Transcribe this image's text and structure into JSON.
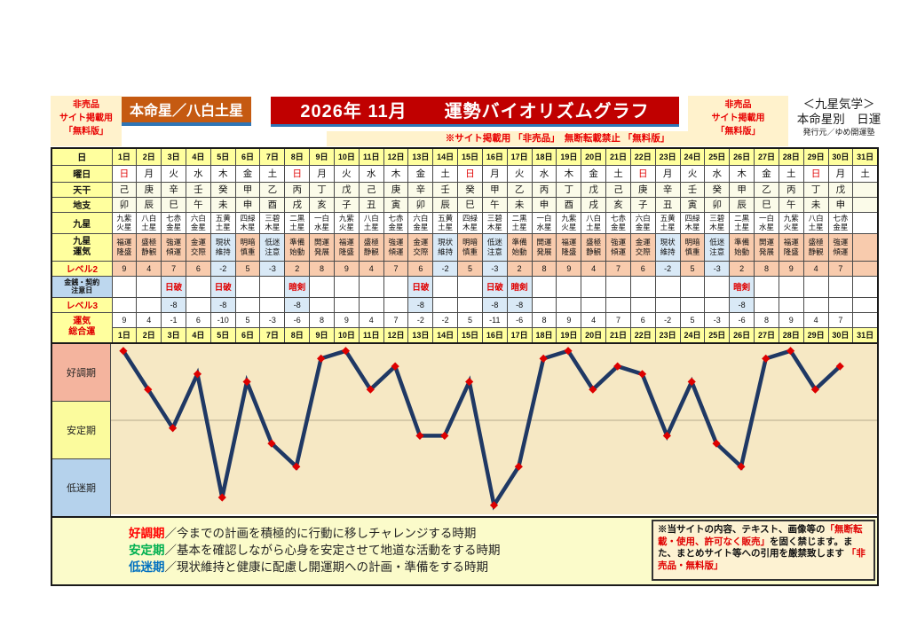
{
  "header": {
    "left_notice": {
      "lines": [
        "非売品",
        "サイト掲載用",
        "「無料版」"
      ]
    },
    "honmeisei": "本命星／八白土星",
    "title": "2026年 11月　　運勢バイオリズムグラフ",
    "strip": "※サイト掲載用 「非売品」　無断転載禁止 「無料版」",
    "right_notice": {
      "lines": [
        "非売品",
        "サイト掲載用",
        "「無料版」"
      ]
    },
    "publisher": {
      "lines": [
        "＜九星気学＞",
        "本命星別　日運",
        "発行元／ゆめ開運塾"
      ]
    }
  },
  "table": {
    "row_labels": {
      "day": "日",
      "youbi": "曜日",
      "tenkan": "天干",
      "chishi": "地支",
      "kyusei": "九星",
      "unki": [
        "九星",
        "運気"
      ],
      "level2": "レベル2",
      "caution": [
        "金銭・契約",
        "注意日"
      ],
      "level3": "レベル3",
      "total": [
        "運気",
        "総合運"
      ]
    },
    "days": [
      "1日",
      "2日",
      "3日",
      "4日",
      "5日",
      "6日",
      "7日",
      "8日",
      "9日",
      "10日",
      "11日",
      "12日",
      "13日",
      "14日",
      "15日",
      "16日",
      "17日",
      "18日",
      "19日",
      "20日",
      "21日",
      "22日",
      "23日",
      "24日",
      "25日",
      "26日",
      "27日",
      "28日",
      "29日",
      "30日",
      "31日"
    ],
    "sunday": "日",
    "youbi": [
      "日",
      "月",
      "火",
      "水",
      "木",
      "金",
      "土",
      "日",
      "月",
      "火",
      "水",
      "木",
      "金",
      "土",
      "日",
      "月",
      "火",
      "水",
      "木",
      "金",
      "土",
      "日",
      "月",
      "火",
      "水",
      "木",
      "金",
      "土",
      "日",
      "月",
      "土"
    ],
    "tenkan": [
      "己",
      "庚",
      "辛",
      "壬",
      "癸",
      "甲",
      "乙",
      "丙",
      "丁",
      "戊",
      "己",
      "庚",
      "辛",
      "壬",
      "癸",
      "甲",
      "乙",
      "丙",
      "丁",
      "戊",
      "己",
      "庚",
      "辛",
      "壬",
      "癸",
      "甲",
      "乙",
      "丙",
      "丁",
      "戊"
    ],
    "chishi": [
      "卯",
      "辰",
      "巳",
      "午",
      "未",
      "申",
      "酉",
      "戌",
      "亥",
      "子",
      "丑",
      "寅",
      "卯",
      "辰",
      "巳",
      "午",
      "未",
      "申",
      "酉",
      "戌",
      "亥",
      "子",
      "丑",
      "寅",
      "卯",
      "辰",
      "巳",
      "午",
      "未",
      "申"
    ],
    "kyusei": [
      [
        "九紫",
        "火星"
      ],
      [
        "八白",
        "土星"
      ],
      [
        "七赤",
        "金星"
      ],
      [
        "六白",
        "金星"
      ],
      [
        "五黄",
        "土星"
      ],
      [
        "四緑",
        "木星"
      ],
      [
        "三碧",
        "木星"
      ],
      [
        "二黒",
        "土星"
      ],
      [
        "一白",
        "水星"
      ],
      [
        "九紫",
        "火星"
      ],
      [
        "八白",
        "土星"
      ],
      [
        "七赤",
        "金星"
      ],
      [
        "六白",
        "金星"
      ],
      [
        "五黄",
        "土星"
      ],
      [
        "四緑",
        "木星"
      ],
      [
        "三碧",
        "木星"
      ],
      [
        "二黒",
        "土星"
      ],
      [
        "一白",
        "水星"
      ],
      [
        "九紫",
        "火星"
      ],
      [
        "八白",
        "土星"
      ],
      [
        "七赤",
        "金星"
      ],
      [
        "六白",
        "金星"
      ],
      [
        "五黄",
        "土星"
      ],
      [
        "四緑",
        "木星"
      ],
      [
        "三碧",
        "木星"
      ],
      [
        "二黒",
        "土星"
      ],
      [
        "一白",
        "水星"
      ],
      [
        "九紫",
        "火星"
      ],
      [
        "八白",
        "土星"
      ],
      [
        "七赤",
        "金星"
      ]
    ],
    "unki": [
      [
        "福運",
        "隆盛"
      ],
      [
        "盛極",
        "静観"
      ],
      [
        "強運",
        "傾運"
      ],
      [
        "金運",
        "交際"
      ],
      [
        "現状",
        "維持"
      ],
      [
        "明暗",
        "慎重"
      ],
      [
        "低迷",
        "注意"
      ],
      [
        "準備",
        "始動"
      ],
      [
        "開運",
        "発展"
      ],
      [
        "福運",
        "隆盛"
      ],
      [
        "盛極",
        "静観"
      ],
      [
        "強運",
        "傾運"
      ],
      [
        "金運",
        "交際"
      ],
      [
        "現状",
        "維持"
      ],
      [
        "明暗",
        "慎重"
      ],
      [
        "低迷",
        "注意"
      ],
      [
        "準備",
        "始動"
      ],
      [
        "開運",
        "発展"
      ],
      [
        "福運",
        "隆盛"
      ],
      [
        "盛極",
        "静観"
      ],
      [
        "強運",
        "傾運"
      ],
      [
        "金運",
        "交際"
      ],
      [
        "現状",
        "維持"
      ],
      [
        "明暗",
        "慎重"
      ],
      [
        "低迷",
        "注意"
      ],
      [
        "準備",
        "始動"
      ],
      [
        "開運",
        "発展"
      ],
      [
        "福運",
        "隆盛"
      ],
      [
        "盛極",
        "静観"
      ],
      [
        "強運",
        "傾運"
      ]
    ],
    "level2": [
      9,
      4,
      7,
      6,
      -2,
      5,
      -3,
      2,
      8,
      9,
      4,
      7,
      6,
      -2,
      5,
      -3,
      2,
      8,
      9,
      4,
      7,
      6,
      -2,
      5,
      -3,
      2,
      8,
      9,
      4,
      7
    ],
    "caution": [
      "",
      "",
      "日破",
      "",
      "日破",
      "",
      "",
      "暗剣",
      "",
      "",
      "",
      "",
      "日破",
      "",
      "",
      "日破",
      "暗剣",
      "",
      "",
      "",
      "",
      "",
      "",
      "",
      "",
      "暗剣",
      "",
      "",
      "",
      "",
      ""
    ],
    "level3": [
      "",
      "",
      "-8",
      "",
      "-8",
      "",
      "",
      "-8",
      "",
      "",
      "",
      "",
      "-8",
      "",
      "",
      "-8",
      "-8",
      "",
      "",
      "",
      "",
      "",
      "",
      "",
      "",
      "-8",
      "",
      "",
      "",
      "",
      ""
    ],
    "total": [
      9,
      4,
      -1,
      6,
      -10,
      5,
      -3,
      -6,
      8,
      9,
      4,
      7,
      -2,
      -2,
      5,
      -11,
      -6,
      8,
      9,
      4,
      7,
      6,
      -2,
      5,
      -3,
      -6,
      8,
      9,
      4,
      7
    ]
  },
  "chart_data": {
    "type": "line",
    "title": "2026年 11月 運勢バイオリズムグラフ（運気総合運）",
    "categories": [
      "1日",
      "2日",
      "3日",
      "4日",
      "5日",
      "6日",
      "7日",
      "8日",
      "9日",
      "10日",
      "11日",
      "12日",
      "13日",
      "14日",
      "15日",
      "16日",
      "17日",
      "18日",
      "19日",
      "20日",
      "21日",
      "22日",
      "23日",
      "24日",
      "25日",
      "26日",
      "27日",
      "28日",
      "29日",
      "30日"
    ],
    "values": [
      9,
      4,
      -1,
      6,
      -10,
      5,
      -3,
      -6,
      8,
      9,
      4,
      7,
      -2,
      -2,
      5,
      -11,
      -6,
      8,
      9,
      4,
      7,
      6,
      -2,
      5,
      -3,
      -6,
      8,
      9,
      4,
      7
    ],
    "ylim": [
      -12,
      10
    ],
    "zero_gridline": true,
    "grid_color": "#b7aa8c",
    "line_color": "#1f3864",
    "marker": "diamond",
    "marker_color": "#dd0000",
    "plot_bg": "#f6e8c4",
    "zones": [
      {
        "label": "好調期",
        "color": "#f4b49e"
      },
      {
        "label": "安定期",
        "color": "#fbfb9d"
      },
      {
        "label": "低迷期",
        "color": "#b5d2ec"
      }
    ]
  },
  "legend": {
    "lines": [
      {
        "label": "好調期",
        "color": "#ff0000",
        "text": "／今までの計画を積極的に行動に移しチャレンジする時期"
      },
      {
        "label": "安定期",
        "color": "#00b050",
        "text": "／基本を確認しながら心身を安定させて地道な活動をする時期"
      },
      {
        "label": "低迷期",
        "color": "#0070c0",
        "text": "／現状維持と健康に配慮し開運期への計画・準備をする時期"
      }
    ]
  },
  "disclaimer": {
    "segments": [
      {
        "text": "※当サイトの内容、テキスト、画像等の",
        "red": false
      },
      {
        "text": "「無断転載・使用、許可なく販売」",
        "red": true
      },
      {
        "text": "を固く禁じます。また、まとめサイト等への引用を厳禁致します ",
        "red": false
      },
      {
        "text": "「非売品・無料版」",
        "red": true
      }
    ]
  }
}
